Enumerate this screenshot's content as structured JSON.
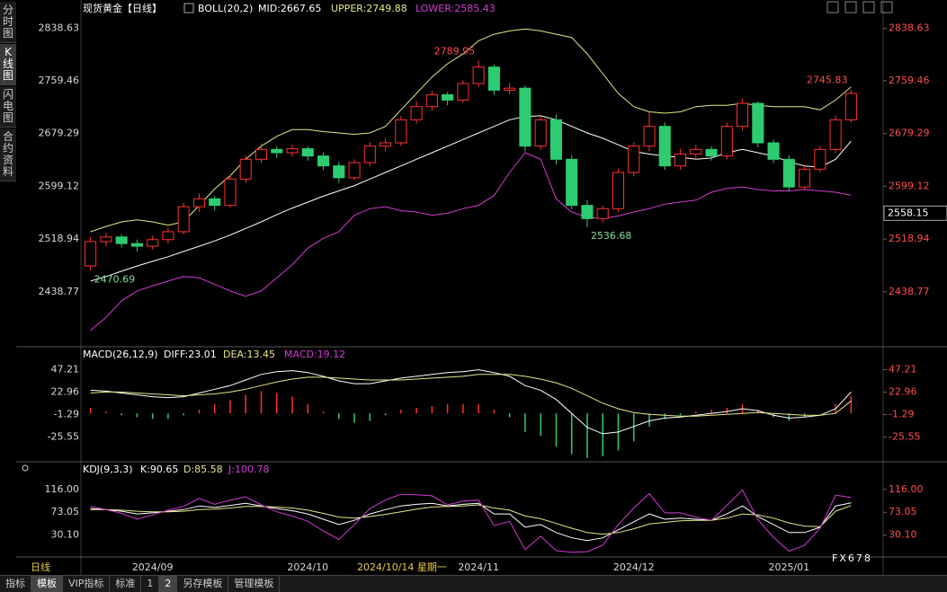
{
  "chart_data": [
    {
      "type": "candlestick",
      "title": "现货黄金【日线】",
      "indicator": "BOLL(20,2)",
      "categories": [
        null,
        null,
        null,
        null,
        "2024/09",
        null,
        null,
        null,
        null,
        null,
        null,
        null,
        null,
        null,
        "2024/10",
        null,
        null,
        null,
        null,
        null,
        null,
        null,
        null,
        null,
        null,
        "2024/11",
        null,
        null,
        null,
        null,
        null,
        null,
        null,
        null,
        null,
        "2024/12",
        null,
        null,
        null,
        null,
        null,
        null,
        null,
        null,
        null,
        "2025/01",
        null,
        null,
        null,
        null
      ],
      "candles": [
        [
          2478,
          2522,
          2470.69,
          2515
        ],
        [
          2515,
          2528,
          2508,
          2522
        ],
        [
          2522,
          2526,
          2506,
          2512
        ],
        [
          2512,
          2518,
          2500,
          2508
        ],
        [
          2508,
          2524,
          2503,
          2518
        ],
        [
          2518,
          2536,
          2512,
          2530
        ],
        [
          2530,
          2574,
          2526,
          2568
        ],
        [
          2568,
          2588,
          2560,
          2580
        ],
        [
          2580,
          2585,
          2562,
          2570
        ],
        [
          2570,
          2616,
          2566,
          2610
        ],
        [
          2610,
          2646,
          2604,
          2640
        ],
        [
          2640,
          2664,
          2634,
          2655
        ],
        [
          2655,
          2660,
          2642,
          2650
        ],
        [
          2650,
          2662,
          2644,
          2656
        ],
        [
          2656,
          2660,
          2638,
          2645
        ],
        [
          2645,
          2650,
          2624,
          2630
        ],
        [
          2630,
          2636,
          2604,
          2612
        ],
        [
          2612,
          2640,
          2608,
          2635
        ],
        [
          2635,
          2666,
          2630,
          2660
        ],
        [
          2660,
          2672,
          2652,
          2665
        ],
        [
          2665,
          2706,
          2660,
          2700
        ],
        [
          2700,
          2728,
          2694,
          2720
        ],
        [
          2720,
          2744,
          2714,
          2738
        ],
        [
          2738,
          2742,
          2722,
          2730
        ],
        [
          2730,
          2760,
          2726,
          2755
        ],
        [
          2755,
          2789.95,
          2750,
          2780
        ],
        [
          2780,
          2784,
          2738,
          2745
        ],
        [
          2745,
          2756,
          2738,
          2748
        ],
        [
          2748,
          2752,
          2652,
          2660
        ],
        [
          2660,
          2706,
          2654,
          2700
        ],
        [
          2700,
          2708,
          2632,
          2640
        ],
        [
          2640,
          2646,
          2564,
          2570
        ],
        [
          2570,
          2578,
          2536.68,
          2550
        ],
        [
          2550,
          2570,
          2544,
          2565
        ],
        [
          2565,
          2626,
          2560,
          2620
        ],
        [
          2620,
          2666,
          2614,
          2660
        ],
        [
          2660,
          2712,
          2652,
          2690
        ],
        [
          2690,
          2696,
          2624,
          2630
        ],
        [
          2630,
          2656,
          2624,
          2648
        ],
        [
          2648,
          2662,
          2640,
          2655
        ],
        [
          2655,
          2660,
          2638,
          2645
        ],
        [
          2645,
          2696,
          2640,
          2690
        ],
        [
          2690,
          2732,
          2684,
          2725
        ],
        [
          2725,
          2728,
          2658,
          2665
        ],
        [
          2665,
          2670,
          2634,
          2640
        ],
        [
          2640,
          2646,
          2592,
          2598
        ],
        [
          2598,
          2630,
          2594,
          2625
        ],
        [
          2625,
          2660,
          2620,
          2655
        ],
        [
          2655,
          2706,
          2650,
          2700
        ],
        [
          2700,
          2745.83,
          2696,
          2740
        ]
      ],
      "up_color": "#ff3232",
      "down_color": "#2ecc71",
      "series": [
        {
          "name": "MID:2667.65",
          "color": "#ffffff",
          "values": [
            2455,
            2462,
            2470,
            2478,
            2485,
            2492,
            2500,
            2508,
            2516,
            2525,
            2535,
            2545,
            2556,
            2566,
            2575,
            2584,
            2592,
            2600,
            2610,
            2620,
            2630,
            2640,
            2650,
            2660,
            2670,
            2680,
            2690,
            2700,
            2705,
            2706,
            2700,
            2690,
            2680,
            2672,
            2662,
            2652,
            2648,
            2645,
            2643,
            2640,
            2642,
            2650,
            2655,
            2650,
            2645,
            2636,
            2630,
            2628,
            2640,
            2667.65
          ]
        },
        {
          "name": "UPPER:2749.88",
          "color": "#e6e68a",
          "values": [
            2530,
            2538,
            2545,
            2548,
            2545,
            2540,
            2545,
            2570,
            2595,
            2615,
            2640,
            2660,
            2675,
            2685,
            2685,
            2682,
            2680,
            2678,
            2680,
            2690,
            2715,
            2740,
            2765,
            2785,
            2800,
            2820,
            2830,
            2835,
            2838,
            2835,
            2830,
            2825,
            2800,
            2770,
            2740,
            2720,
            2712,
            2710,
            2712,
            2720,
            2722,
            2722,
            2725,
            2722,
            2720,
            2720,
            2720,
            2715,
            2730,
            2749.88
          ]
        },
        {
          "name": "LOWER:2585.43",
          "color": "#d23cd2",
          "values": [
            2380,
            2400,
            2425,
            2440,
            2448,
            2455,
            2462,
            2460,
            2450,
            2440,
            2432,
            2440,
            2460,
            2480,
            2505,
            2520,
            2530,
            2555,
            2565,
            2568,
            2562,
            2560,
            2555,
            2558,
            2565,
            2570,
            2585,
            2620,
            2650,
            2640,
            2580,
            2560,
            2552,
            2550,
            2554,
            2560,
            2565,
            2572,
            2575,
            2578,
            2590,
            2596,
            2598,
            2594,
            2592,
            2592,
            2594,
            2592,
            2590,
            2585.43
          ]
        }
      ],
      "ylim": [
        2359.4,
        2851.9
      ],
      "yticks": [
        2838.63,
        2759.46,
        2679.29,
        2599.12,
        2518.94,
        2438.77
      ],
      "crosshair": {
        "price": 2558.15,
        "date": "2024/10/14 星期一"
      }
    },
    {
      "type": "macd",
      "title": "MACD(26,12,9)",
      "series": [
        {
          "name": "DIFF:23.01",
          "color": "#ffffff",
          "values": [
            25,
            24,
            22,
            20,
            18,
            17,
            18,
            22,
            26,
            30,
            36,
            42,
            45,
            46,
            44,
            40,
            35,
            32,
            32,
            35,
            38,
            40,
            42,
            44,
            45,
            47,
            44,
            40,
            30,
            25,
            15,
            0,
            -15,
            -22,
            -20,
            -14,
            -8,
            -5,
            -4,
            -2,
            0,
            2,
            5,
            3,
            -2,
            -5,
            -4,
            -2,
            5,
            23.01
          ]
        },
        {
          "name": "DEA:13.45",
          "color": "#e6e68a",
          "values": [
            22,
            23,
            23,
            22,
            21,
            20,
            19,
            20,
            21,
            23,
            26,
            30,
            34,
            37,
            39,
            39,
            38,
            37,
            36,
            36,
            36,
            37,
            38,
            39,
            40,
            42,
            42,
            42,
            40,
            37,
            33,
            27,
            19,
            11,
            5,
            1,
            -1,
            -2,
            -3,
            -3,
            -2,
            -1,
            0,
            1,
            0,
            -1,
            -2,
            -2,
            0,
            13.45
          ]
        }
      ],
      "histogram": {
        "name": "MACD:19.12",
        "color": "#d23cd2",
        "up_color": "#ff3232",
        "down_color": "#2ecc71",
        "values": [
          6,
          2,
          -2,
          -4,
          -6,
          -6,
          -2,
          4,
          10,
          14,
          20,
          24,
          22,
          18,
          10,
          2,
          -6,
          -10,
          -8,
          -2,
          4,
          6,
          8,
          10,
          10,
          10,
          4,
          -4,
          -20,
          -24,
          -36,
          -44,
          -48,
          -46,
          -40,
          -30,
          -14,
          -6,
          -2,
          2,
          4,
          6,
          10,
          4,
          -4,
          -8,
          -4,
          0,
          10,
          19.12
        ]
      },
      "ylim": [
        -50.1,
        56.3
      ],
      "yticks": [
        47.21,
        22.96,
        -1.29,
        -25.55
      ]
    },
    {
      "type": "line",
      "title": "KDJ(9,3,3)",
      "series": [
        {
          "name": "K:90.65",
          "color": "#ffffff",
          "values": [
            80,
            78,
            75,
            70,
            72,
            75,
            78,
            85,
            82,
            86,
            90,
            85,
            80,
            76,
            70,
            60,
            50,
            58,
            70,
            78,
            85,
            88,
            90,
            85,
            88,
            90,
            70,
            70,
            45,
            50,
            35,
            25,
            20,
            25,
            40,
            55,
            70,
            60,
            62,
            60,
            58,
            70,
            85,
            65,
            50,
            35,
            35,
            45,
            85,
            90.65
          ]
        },
        {
          "name": "D:85.58",
          "color": "#e6e68a",
          "values": [
            78,
            78,
            77,
            75,
            74,
            74,
            75,
            78,
            79,
            81,
            84,
            84,
            83,
            81,
            77,
            71,
            64,
            62,
            65,
            69,
            74,
            79,
            83,
            84,
            85,
            87,
            81,
            77,
            66,
            61,
            52,
            43,
            35,
            32,
            35,
            42,
            51,
            54,
            57,
            58,
            58,
            62,
            70,
            68,
            62,
            53,
            47,
            46,
            75,
            85.58
          ]
        },
        {
          "name": "J:100.78",
          "color": "#d23cd2",
          "values": [
            84,
            78,
            71,
            60,
            68,
            77,
            84,
            99,
            88,
            96,
            102,
            87,
            74,
            66,
            56,
            38,
            22,
            50,
            80,
            96,
            107,
            106,
            104,
            87,
            94,
            96,
            48,
            56,
            3,
            28,
            1,
            -2,
            -1,
            11,
            50,
            81,
            108,
            72,
            72,
            64,
            58,
            86,
            115,
            59,
            26,
            0,
            11,
            43,
            105,
            100.78
          ]
        }
      ],
      "ylim": [
        -2.5,
        141
      ],
      "yticks": [
        {
          "value": 116,
          "label": "116.00"
        },
        73.05,
        {
          "value": 30.1,
          "label": "30.10"
        }
      ]
    }
  ],
  "sidebar": [
    "分时图",
    "K线图",
    "闪电图",
    "合约资料"
  ],
  "period": "日线",
  "tabs": [
    "指标",
    "模板",
    "VIP指标",
    "标准",
    "1",
    "2",
    "另存模板",
    "管理模板"
  ],
  "watermark": "FX678"
}
